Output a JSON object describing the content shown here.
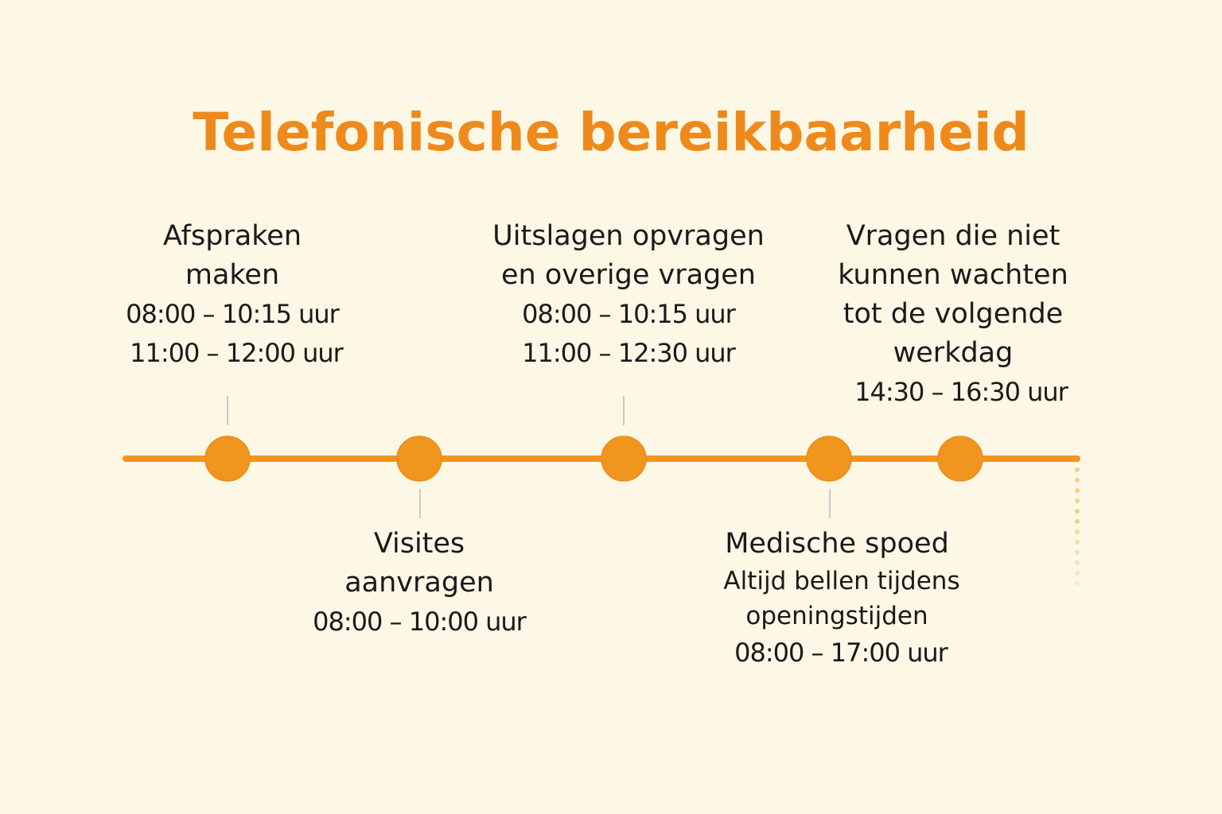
{
  "title": "Telefonische bereikbaarheid",
  "colors": {
    "accent": "#f0961f",
    "title": "#ee8a1c",
    "background": "#fdf7e6"
  },
  "items": [
    {
      "heading": [
        "Afspraken",
        "maken"
      ],
      "times": [
        "08:00 – 10:15 uur",
        "11:00 – 12:00 uur"
      ]
    },
    {
      "heading": [
        "Visites",
        "aanvragen"
      ],
      "times": [
        "08:00 – 10:00 uur"
      ]
    },
    {
      "heading": [
        "Uitslagen opvragen",
        "en overige vragen"
      ],
      "times": [
        "08:00 – 10:15 uur",
        "11:00 – 12:30 uur"
      ]
    },
    {
      "heading": [
        "Medische spoed"
      ],
      "note": [
        "Altijd bellen tijdens",
        "openingstijden"
      ],
      "times": [
        "08:00 – 17:00 uur"
      ]
    },
    {
      "heading": [
        "Vragen die niet",
        "kunnen wachten",
        "tot de volgende",
        "werkdag"
      ],
      "times": [
        "14:30 – 16:30 uur"
      ]
    }
  ]
}
